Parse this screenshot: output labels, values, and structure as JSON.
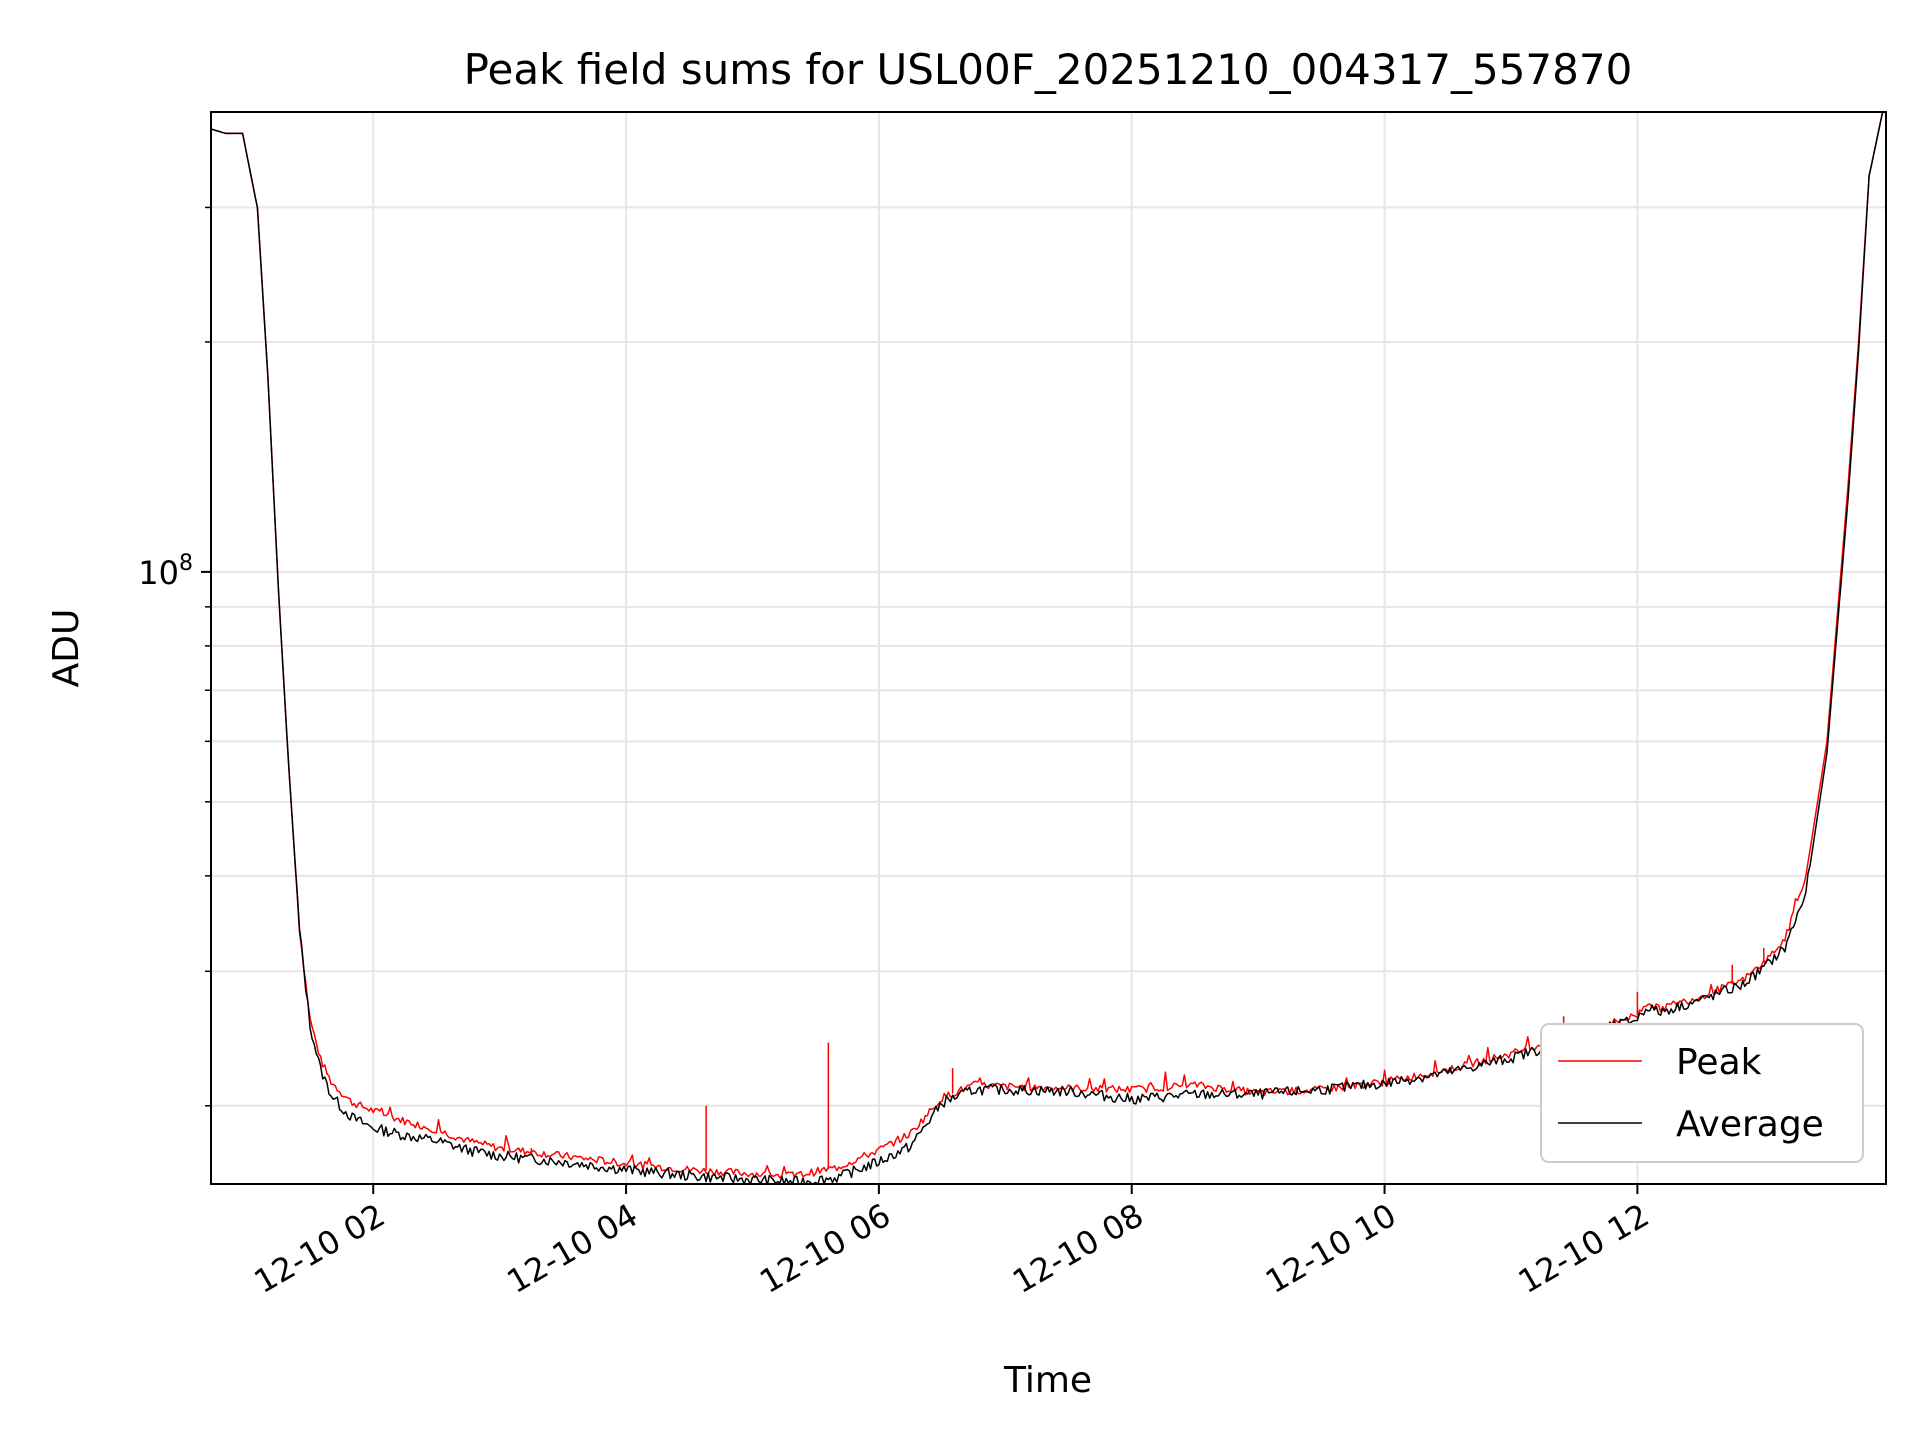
{
  "chart_data": {
    "type": "line",
    "title": "Peak field sums for USL00F_20251210_004317_557870",
    "xlabel": "Time",
    "ylabel": "ADU",
    "y_scale": "log",
    "ylim": [
      15800000,
      400000000
    ],
    "xlim": [
      "2025-12-10 00:43",
      "2025-12-10 13:58"
    ],
    "grid": true,
    "legend_position": "lower-right",
    "x_ticks": [
      {
        "t": "2025-12-10 02:00",
        "label": "12-10 02"
      },
      {
        "t": "2025-12-10 04:00",
        "label": "12-10 04"
      },
      {
        "t": "2025-12-10 06:00",
        "label": "12-10 06"
      },
      {
        "t": "2025-12-10 08:00",
        "label": "12-10 08"
      },
      {
        "t": "2025-12-10 10:00",
        "label": "12-10 10"
      },
      {
        "t": "2025-12-10 12:00",
        "label": "12-10 12"
      }
    ],
    "y_major_ticks": [
      {
        "value": 100000000,
        "label": "10^8"
      }
    ],
    "y_minor_ticks": [
      20000000,
      30000000,
      40000000,
      50000000,
      60000000,
      70000000,
      80000000,
      90000000,
      200000000,
      300000000
    ],
    "series": [
      {
        "name": "Peak",
        "color": "#ff0000",
        "x": [
          "2025-12-10 00:43",
          "2025-12-10 00:50",
          "2025-12-10 00:58",
          "2025-12-10 01:05",
          "2025-12-10 01:10",
          "2025-12-10 01:15",
          "2025-12-10 01:20",
          "2025-12-10 01:25",
          "2025-12-10 01:30",
          "2025-12-10 01:35",
          "2025-12-10 01:40",
          "2025-12-10 01:45",
          "2025-12-10 01:50",
          "2025-12-10 02:00",
          "2025-12-10 02:15",
          "2025-12-10 02:30",
          "2025-12-10 02:45",
          "2025-12-10 03:00",
          "2025-12-10 03:30",
          "2025-12-10 04:00",
          "2025-12-10 04:30",
          "2025-12-10 05:00",
          "2025-12-10 05:20",
          "2025-12-10 05:40",
          "2025-12-10 06:00",
          "2025-12-10 06:15",
          "2025-12-10 06:30",
          "2025-12-10 06:45",
          "2025-12-10 07:00",
          "2025-12-10 07:30",
          "2025-12-10 08:00",
          "2025-12-10 08:30",
          "2025-12-10 09:00",
          "2025-12-10 09:30",
          "2025-12-10 10:00",
          "2025-12-10 10:30",
          "2025-12-10 11:00",
          "2025-12-10 11:30",
          "2025-12-10 12:00",
          "2025-12-10 12:05",
          "2025-12-10 12:10",
          "2025-12-10 12:30",
          "2025-12-10 12:50",
          "2025-12-10 13:00",
          "2025-12-10 13:10",
          "2025-12-10 13:20",
          "2025-12-10 13:30",
          "2025-12-10 13:40",
          "2025-12-10 13:45",
          "2025-12-10 13:50",
          "2025-12-10 13:58"
        ],
        "y": [
          380000000,
          375000000,
          375000000,
          300000000,
          180000000,
          95000000,
          55000000,
          34000000,
          26000000,
          23000000,
          21500000,
          20800000,
          20200000,
          19700000,
          19100000,
          18600000,
          18000000,
          17600000,
          17200000,
          16800000,
          16500000,
          16300000,
          16200000,
          16600000,
          17500000,
          18400000,
          20500000,
          21300000,
          21200000,
          21100000,
          21000000,
          21300000,
          20800000,
          21000000,
          21500000,
          22300000,
          23400000,
          24800000,
          26300000,
          27400000,
          26800000,
          27800000,
          29200000,
          30800000,
          33000000,
          40000000,
          60000000,
          130000000,
          200000000,
          330000000,
          420000000
        ],
        "spikes": [
          {
            "x": "2025-12-10 04:38",
            "y": 20000000
          },
          {
            "x": "2025-12-10 05:36",
            "y": 24200000
          },
          {
            "x": "2025-12-10 03:15",
            "y": 17600000
          },
          {
            "x": "2025-12-10 06:35",
            "y": 22400000
          },
          {
            "x": "2025-12-10 11:25",
            "y": 26200000
          },
          {
            "x": "2025-12-10 12:00",
            "y": 28200000
          },
          {
            "x": "2025-12-10 12:45",
            "y": 30600000
          },
          {
            "x": "2025-12-10 13:00",
            "y": 32200000
          }
        ]
      },
      {
        "name": "Average",
        "color": "#000000",
        "x": [
          "2025-12-10 00:43",
          "2025-12-10 00:50",
          "2025-12-10 00:58",
          "2025-12-10 01:05",
          "2025-12-10 01:10",
          "2025-12-10 01:15",
          "2025-12-10 01:20",
          "2025-12-10 01:25",
          "2025-12-10 01:30",
          "2025-12-10 01:35",
          "2025-12-10 01:40",
          "2025-12-10 01:45",
          "2025-12-10 01:50",
          "2025-12-10 02:00",
          "2025-12-10 02:15",
          "2025-12-10 02:30",
          "2025-12-10 02:45",
          "2025-12-10 03:00",
          "2025-12-10 03:30",
          "2025-12-10 04:00",
          "2025-12-10 04:30",
          "2025-12-10 05:00",
          "2025-12-10 05:20",
          "2025-12-10 05:40",
          "2025-12-10 06:00",
          "2025-12-10 06:15",
          "2025-12-10 06:30",
          "2025-12-10 06:45",
          "2025-12-10 07:00",
          "2025-12-10 07:30",
          "2025-12-10 08:00",
          "2025-12-10 08:30",
          "2025-12-10 09:00",
          "2025-12-10 09:30",
          "2025-12-10 10:00",
          "2025-12-10 10:30",
          "2025-12-10 11:00",
          "2025-12-10 11:30",
          "2025-12-10 12:00",
          "2025-12-10 12:05",
          "2025-12-10 12:10",
          "2025-12-10 12:30",
          "2025-12-10 12:50",
          "2025-12-10 13:00",
          "2025-12-10 13:10",
          "2025-12-10 13:20",
          "2025-12-10 13:30",
          "2025-12-10 13:40",
          "2025-12-10 13:45",
          "2025-12-10 13:50",
          "2025-12-10 13:58"
        ],
        "y": [
          380000000,
          375000000,
          375000000,
          300000000,
          180000000,
          95000000,
          55000000,
          34000000,
          25500000,
          22300000,
          20700000,
          19900000,
          19300000,
          18700000,
          18300000,
          18000000,
          17500000,
          17200000,
          16900000,
          16500000,
          16200000,
          16000000,
          15900000,
          16100000,
          16900000,
          17700000,
          20200000,
          21000000,
          21000000,
          20900000,
          20400000,
          20700000,
          20700000,
          21000000,
          21400000,
          22100000,
          23100000,
          24500000,
          26000000,
          27000000,
          26500000,
          27500000,
          28800000,
          30300000,
          32200000,
          38000000,
          58000000,
          125000000,
          195000000,
          330000000,
          420000000
        ]
      }
    ]
  }
}
